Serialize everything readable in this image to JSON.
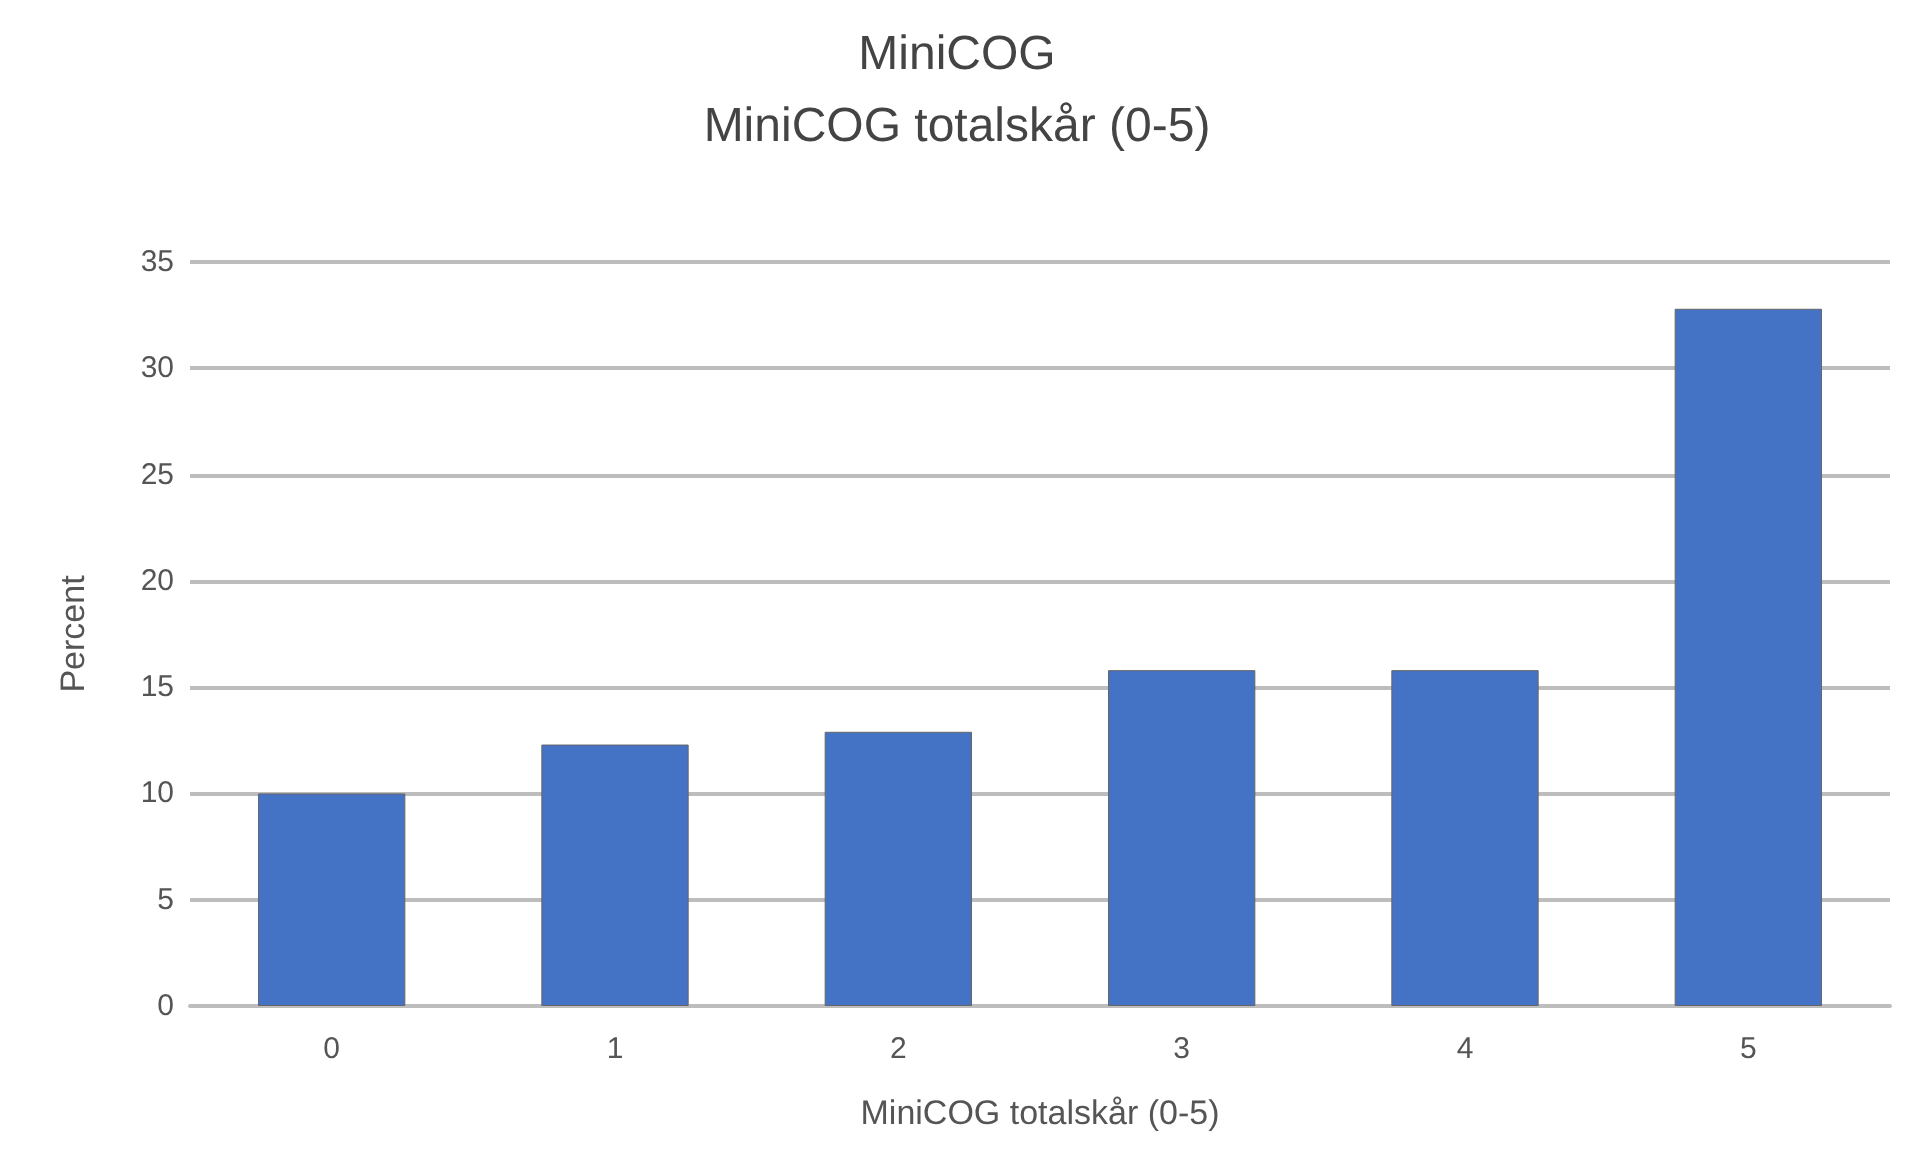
{
  "chart_data": {
    "type": "bar",
    "title": "MiniCOG",
    "subtitle": "MiniCOG totalskår (0-5)",
    "xlabel": "MiniCOG totalskår (0-5)",
    "ylabel": "Percent",
    "categories": [
      "0",
      "1",
      "2",
      "3",
      "4",
      "5"
    ],
    "values": [
      10,
      12.3,
      12.9,
      15.8,
      15.8,
      32.8
    ],
    "color": "#4472c4",
    "ylim": [
      0,
      35
    ],
    "yticks": [
      0,
      5,
      10,
      15,
      20,
      25,
      30,
      35
    ],
    "grid": "y"
  }
}
